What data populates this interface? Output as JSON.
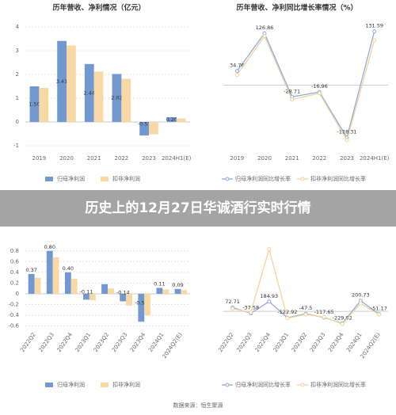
{
  "chart_data": [
    {
      "type": "bar",
      "title": "历年营收、净利情况（亿元）",
      "categories": [
        "2019",
        "2020",
        "2021",
        "2022",
        "2023",
        "2024H1(E)"
      ],
      "series": [
        {
          "name": "归母净利润",
          "color": "#7298d2",
          "values": [
            1.5,
            3.41,
            2.44,
            2.02,
            -0.57,
            0.2
          ],
          "value_labels": [
            "1.50",
            "3.41",
            "2.44",
            "2.02",
            "-0.57",
            "0.20"
          ],
          "show_labels": true
        },
        {
          "name": "扣非净利润",
          "color": "#f8d9a6",
          "values": [
            1.43,
            3.22,
            2.12,
            1.82,
            -0.52,
            0.15
          ]
        }
      ],
      "ylim": [
        -1.2,
        4.3
      ],
      "yticks": [
        -1,
        0,
        1,
        2,
        3,
        4
      ],
      "grid": true
    },
    {
      "type": "line",
      "title": "历年营收、净利同比增长率情况（%）",
      "categories": [
        "2019",
        "2020",
        "2021",
        "2022",
        "2023",
        "2024H1(E)"
      ],
      "series": [
        {
          "name": "归母净利润同比增长率",
          "color": "#8eaadb",
          "values": [
            34.76,
            126.86,
            -28.71,
            -16.96,
            -128.31,
            131.59
          ],
          "show_labels": true
        },
        {
          "name": "扣非净利润同比增长率",
          "color": "#f3d39b",
          "values": [
            25,
            120,
            -35,
            -20,
            -135,
            110
          ]
        }
      ],
      "ylim": [
        -160,
        160
      ]
    },
    {
      "type": "bar",
      "title": "",
      "categories": [
        "2022Q2",
        "2022Q3",
        "2022Q4",
        "2023Q1",
        "2023Q2",
        "2023Q3",
        "2023Q4",
        "2024Q1",
        "2024Q2(E)"
      ],
      "series": [
        {
          "name": "归母净利润",
          "color": "#7298d2",
          "values": [
            0.37,
            0.8,
            0.4,
            -0.11,
            0.18,
            -0.14,
            -0.52,
            0.11,
            0.09
          ],
          "value_labels": [
            "0.37",
            "0.80",
            "0.40",
            "-0.11",
            null,
            "-0.14",
            "-0.52",
            "0.11",
            "0.09"
          ],
          "show_labels": true
        },
        {
          "name": "扣非净利润",
          "color": "#f8d9a6",
          "values": [
            0.3,
            0.68,
            0.28,
            -0.12,
            0.1,
            -0.22,
            -0.4,
            0.08,
            0.07
          ]
        }
      ],
      "ylim": [
        -0.65,
        0.9
      ],
      "yticks": [
        -0.6,
        -0.4,
        -0.2,
        0,
        0.2,
        0.4,
        0.6,
        0.8
      ],
      "grid": true
    },
    {
      "type": "line",
      "title": "",
      "categories": [
        "2022Q2",
        "2022Q3",
        "2022Q4",
        "2023Q1",
        "2023Q2",
        "2023Q3",
        "2023Q4",
        "2024Q1",
        "2024Q2(E)"
      ],
      "series": [
        {
          "name": "归母净利润同比增长率",
          "color": "#8eaadb",
          "values": [
            72.71,
            -37.58,
            184.93,
            -122.92,
            -47.5,
            -117.65,
            -229.92,
            200.73,
            -51.17
          ],
          "show_labels": true
        },
        {
          "name": "扣非净利润同比增长率",
          "color": "#f3d39b",
          "values": [
            50,
            -20,
            1180,
            -130,
            -60,
            -110,
            -240,
            150,
            -60
          ]
        }
      ],
      "ylim": [
        -330,
        1250
      ]
    }
  ],
  "banner": "历史上的12月27日华诚酒行实时行情",
  "source": "数据来源：恒生聚源"
}
